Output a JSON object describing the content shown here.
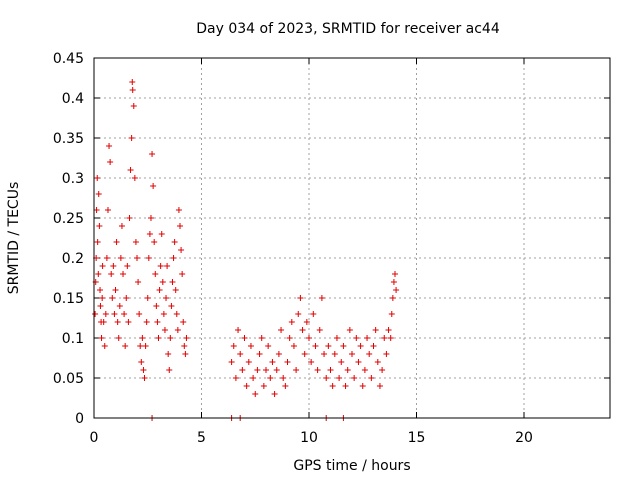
{
  "chart_data": {
    "type": "scatter",
    "title": "Day 034 of 2023, SRMTID for receiver ac44",
    "xlabel": "GPS time / hours",
    "ylabel": "SRMTID / TECUs",
    "xlim": [
      0,
      24
    ],
    "ylim": [
      0,
      0.45
    ],
    "xticks": [
      0,
      5,
      10,
      15,
      20
    ],
    "xtick_labels": [
      "0",
      "5",
      "10",
      "15",
      "20"
    ],
    "yticks": [
      0,
      0.05,
      0.1,
      0.15,
      0.2,
      0.25,
      0.3,
      0.35,
      0.4,
      0.45
    ],
    "ytick_labels": [
      "0",
      "0.05",
      "0.1",
      "0.15",
      "0.2",
      "0.25",
      "0.3",
      "0.35",
      "0.4",
      "0.45"
    ],
    "grid": true,
    "marker": "+",
    "color": "#e00000",
    "series": [
      {
        "name": "SRMTID",
        "points": [
          [
            0.05,
            0.13
          ],
          [
            0.08,
            0.17
          ],
          [
            0.1,
            0.2
          ],
          [
            0.12,
            0.26
          ],
          [
            0.15,
            0.3
          ],
          [
            0.17,
            0.22
          ],
          [
            0.2,
            0.18
          ],
          [
            0.22,
            0.28
          ],
          [
            0.25,
            0.24
          ],
          [
            0.28,
            0.16
          ],
          [
            0.3,
            0.14
          ],
          [
            0.33,
            0.12
          ],
          [
            0.35,
            0.1
          ],
          [
            0.38,
            0.15
          ],
          [
            0.4,
            0.19
          ],
          [
            0.45,
            0.12
          ],
          [
            0.5,
            0.09
          ],
          [
            0.55,
            0.13
          ],
          [
            0.6,
            0.2
          ],
          [
            0.65,
            0.26
          ],
          [
            0.7,
            0.34
          ],
          [
            0.75,
            0.32
          ],
          [
            0.8,
            0.18
          ],
          [
            0.85,
            0.15
          ],
          [
            0.9,
            0.19
          ],
          [
            0.95,
            0.13
          ],
          [
            1.0,
            0.16
          ],
          [
            1.05,
            0.22
          ],
          [
            1.1,
            0.12
          ],
          [
            1.15,
            0.1
          ],
          [
            1.2,
            0.14
          ],
          [
            1.25,
            0.2
          ],
          [
            1.3,
            0.24
          ],
          [
            1.35,
            0.18
          ],
          [
            1.4,
            0.13
          ],
          [
            1.45,
            0.09
          ],
          [
            1.5,
            0.15
          ],
          [
            1.55,
            0.19
          ],
          [
            1.6,
            0.12
          ],
          [
            1.65,
            0.25
          ],
          [
            1.7,
            0.31
          ],
          [
            1.75,
            0.35
          ],
          [
            1.78,
            0.42
          ],
          [
            1.8,
            0.41
          ],
          [
            1.85,
            0.39
          ],
          [
            1.9,
            0.3
          ],
          [
            1.95,
            0.22
          ],
          [
            2.0,
            0.2
          ],
          [
            2.05,
            0.17
          ],
          [
            2.1,
            0.13
          ],
          [
            2.15,
            0.09
          ],
          [
            2.2,
            0.07
          ],
          [
            2.25,
            0.1
          ],
          [
            2.3,
            0.06
          ],
          [
            2.35,
            0.05
          ],
          [
            2.4,
            0.09
          ],
          [
            2.45,
            0.12
          ],
          [
            2.5,
            0.15
          ],
          [
            2.55,
            0.2
          ],
          [
            2.6,
            0.23
          ],
          [
            2.65,
            0.25
          ],
          [
            2.7,
            0.33
          ],
          [
            2.75,
            0.29
          ],
          [
            2.8,
            0.22
          ],
          [
            2.85,
            0.18
          ],
          [
            2.9,
            0.14
          ],
          [
            2.95,
            0.12
          ],
          [
            3.0,
            0.1
          ],
          [
            3.05,
            0.16
          ],
          [
            3.1,
            0.19
          ],
          [
            3.15,
            0.23
          ],
          [
            3.2,
            0.17
          ],
          [
            3.25,
            0.13
          ],
          [
            3.3,
            0.11
          ],
          [
            3.35,
            0.15
          ],
          [
            3.4,
            0.19
          ],
          [
            3.45,
            0.08
          ],
          [
            3.5,
            0.06
          ],
          [
            3.55,
            0.1
          ],
          [
            3.6,
            0.14
          ],
          [
            3.65,
            0.17
          ],
          [
            3.7,
            0.2
          ],
          [
            3.75,
            0.22
          ],
          [
            3.8,
            0.16
          ],
          [
            3.85,
            0.13
          ],
          [
            3.9,
            0.11
          ],
          [
            3.95,
            0.26
          ],
          [
            4.0,
            0.24
          ],
          [
            4.05,
            0.21
          ],
          [
            4.1,
            0.18
          ],
          [
            4.15,
            0.12
          ],
          [
            4.2,
            0.09
          ],
          [
            4.25,
            0.08
          ],
          [
            4.3,
            0.1
          ],
          [
            2.7,
            0.0
          ],
          [
            6.4,
            0.0
          ],
          [
            6.8,
            0.0
          ],
          [
            10.8,
            0.0
          ],
          [
            11.6,
            0.0
          ],
          [
            6.4,
            0.07
          ],
          [
            6.5,
            0.09
          ],
          [
            6.6,
            0.05
          ],
          [
            6.7,
            0.11
          ],
          [
            6.8,
            0.08
          ],
          [
            6.9,
            0.06
          ],
          [
            7.0,
            0.1
          ],
          [
            7.1,
            0.04
          ],
          [
            7.2,
            0.07
          ],
          [
            7.3,
            0.09
          ],
          [
            7.4,
            0.05
          ],
          [
            7.5,
            0.03
          ],
          [
            7.6,
            0.06
          ],
          [
            7.7,
            0.08
          ],
          [
            7.8,
            0.1
          ],
          [
            7.9,
            0.04
          ],
          [
            8.0,
            0.06
          ],
          [
            8.1,
            0.09
          ],
          [
            8.2,
            0.05
          ],
          [
            8.3,
            0.07
          ],
          [
            8.4,
            0.03
          ],
          [
            8.5,
            0.06
          ],
          [
            8.6,
            0.08
          ],
          [
            8.7,
            0.11
          ],
          [
            8.8,
            0.05
          ],
          [
            8.9,
            0.04
          ],
          [
            9.0,
            0.07
          ],
          [
            9.1,
            0.1
          ],
          [
            9.2,
            0.12
          ],
          [
            9.3,
            0.09
          ],
          [
            9.4,
            0.06
          ],
          [
            9.5,
            0.13
          ],
          [
            9.6,
            0.15
          ],
          [
            9.7,
            0.11
          ],
          [
            9.8,
            0.08
          ],
          [
            9.9,
            0.12
          ],
          [
            10.0,
            0.1
          ],
          [
            10.1,
            0.07
          ],
          [
            10.2,
            0.13
          ],
          [
            10.3,
            0.09
          ],
          [
            10.4,
            0.06
          ],
          [
            10.5,
            0.11
          ],
          [
            10.6,
            0.15
          ],
          [
            10.7,
            0.08
          ],
          [
            10.8,
            0.05
          ],
          [
            10.9,
            0.09
          ],
          [
            11.0,
            0.06
          ],
          [
            11.1,
            0.04
          ],
          [
            11.2,
            0.08
          ],
          [
            11.3,
            0.1
          ],
          [
            11.4,
            0.05
          ],
          [
            11.5,
            0.07
          ],
          [
            11.6,
            0.09
          ],
          [
            11.7,
            0.04
          ],
          [
            11.8,
            0.06
          ],
          [
            11.9,
            0.11
          ],
          [
            12.0,
            0.08
          ],
          [
            12.1,
            0.05
          ],
          [
            12.2,
            0.1
          ],
          [
            12.3,
            0.07
          ],
          [
            12.4,
            0.09
          ],
          [
            12.5,
            0.04
          ],
          [
            12.6,
            0.06
          ],
          [
            12.7,
            0.1
          ],
          [
            12.8,
            0.08
          ],
          [
            12.9,
            0.05
          ],
          [
            13.0,
            0.09
          ],
          [
            13.1,
            0.11
          ],
          [
            13.2,
            0.07
          ],
          [
            13.3,
            0.04
          ],
          [
            13.4,
            0.06
          ],
          [
            13.5,
            0.1
          ],
          [
            13.6,
            0.08
          ],
          [
            13.7,
            0.11
          ],
          [
            13.8,
            0.1
          ],
          [
            13.85,
            0.13
          ],
          [
            13.9,
            0.15
          ],
          [
            13.95,
            0.17
          ],
          [
            14.0,
            0.18
          ],
          [
            14.05,
            0.16
          ]
        ]
      }
    ]
  }
}
